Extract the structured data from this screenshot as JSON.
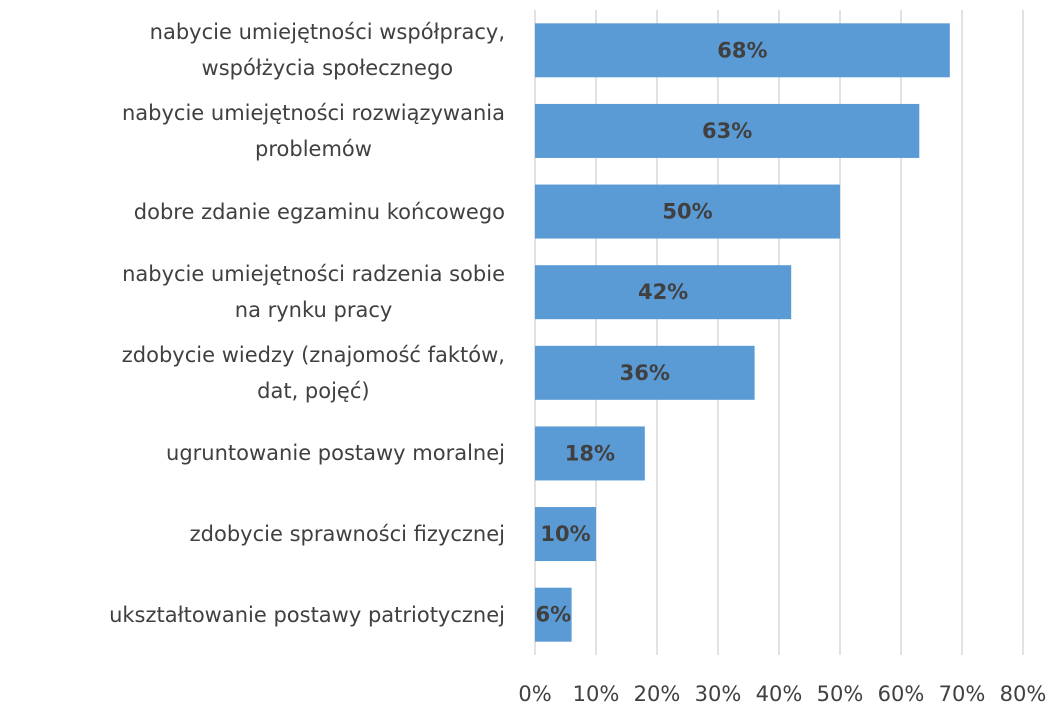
{
  "chart_data": {
    "type": "barh",
    "categories": [
      "nabycie umiejętności współpracy,\nwspółżycia społecznego",
      "nabycie umiejętności rozwiązywania\nproblemów",
      "dobre zdanie egzaminu końcowego",
      "nabycie umiejętności radzenia sobie\nna rynku pracy",
      "zdobycie wiedzy (znajomość faktów,\ndat, pojęć)",
      "ugruntowanie postawy moralnej",
      "zdobycie sprawności fizycznej",
      "ukształtowanie postawy patriotycznej"
    ],
    "values": [
      68,
      63,
      50,
      42,
      36,
      18,
      10,
      6
    ],
    "value_labels": [
      "68%",
      "63%",
      "50%",
      "42%",
      "36%",
      "18%",
      "10%",
      "6%"
    ],
    "color": "#5b9bd5",
    "xlim": [
      0,
      80
    ],
    "xticks": [
      {
        "value": 0,
        "label": "0%"
      },
      {
        "value": 10,
        "label": "10%"
      },
      {
        "value": 20,
        "label": "20%"
      },
      {
        "value": 30,
        "label": "30%"
      },
      {
        "value": 40,
        "label": "40%"
      },
      {
        "value": 50,
        "label": "50%"
      },
      {
        "value": 60,
        "label": "60%"
      },
      {
        "value": 70,
        "label": "70%"
      },
      {
        "value": 80,
        "label": "80%"
      }
    ],
    "grid": true
  }
}
